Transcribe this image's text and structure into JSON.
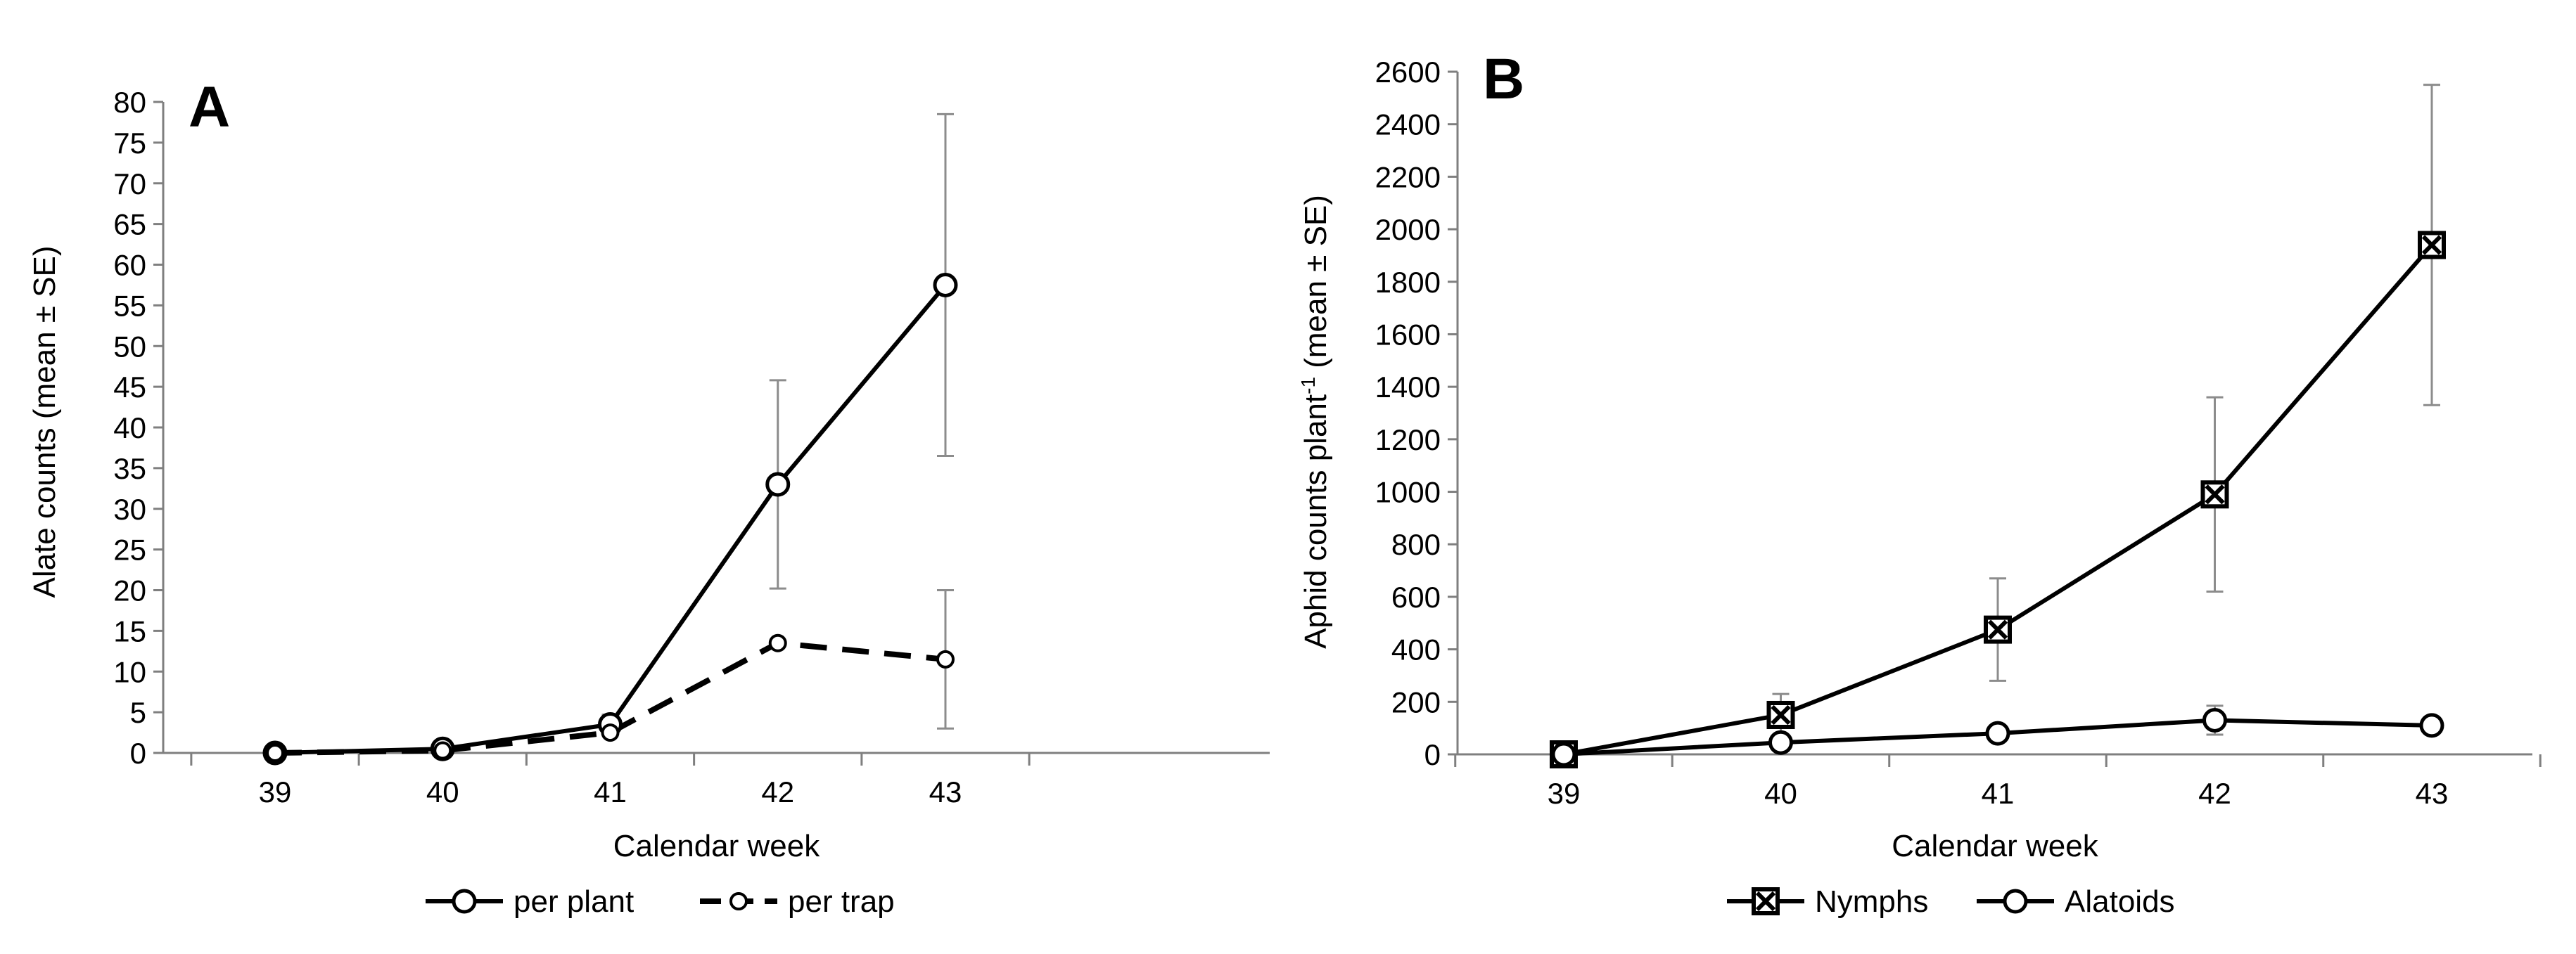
{
  "chart_data": [
    {
      "panel": "A",
      "type": "line",
      "title": "",
      "xlabel": "Calendar week",
      "ylabel": "Alate counts (mean ± SE)",
      "categories": [
        "39",
        "40",
        "41",
        "42",
        "43"
      ],
      "ylim": [
        0,
        80
      ],
      "ytick_step": 5,
      "grid": false,
      "legend_position": "bottom",
      "series": [
        {
          "name": "per plant",
          "line": "solid",
          "marker": "circle-large",
          "values": [
            0,
            0.5,
            3.5,
            33,
            57.5
          ],
          "errors": [
            0,
            0.3,
            1.2,
            12.8,
            21
          ]
        },
        {
          "name": "per trap",
          "line": "dashed",
          "marker": "circle-small",
          "values": [
            0,
            0.3,
            2.5,
            13.5,
            11.5
          ],
          "errors": [
            0,
            0,
            0,
            0,
            8.5
          ]
        }
      ]
    },
    {
      "panel": "B",
      "type": "line",
      "title": "",
      "xlabel": "Calendar week",
      "ylabel_main": "Aphid counts plant",
      "ylabel_sup": "-1",
      "ylabel_tail": " (mean ± SE)",
      "categories": [
        "39",
        "40",
        "41",
        "42",
        "43"
      ],
      "ylim": [
        0,
        2600
      ],
      "ytick_step": 200,
      "grid": false,
      "legend_position": "bottom",
      "series": [
        {
          "name": "Nymphs",
          "line": "solid",
          "marker": "square-x",
          "values": [
            0,
            150,
            475,
            990,
            1940
          ],
          "errors": [
            0,
            80,
            195,
            370,
            610
          ]
        },
        {
          "name": "Alatoids",
          "line": "solid",
          "marker": "circle",
          "values": [
            0,
            45,
            80,
            130,
            110
          ],
          "errors": [
            0,
            0,
            0,
            55,
            0
          ]
        }
      ]
    }
  ]
}
